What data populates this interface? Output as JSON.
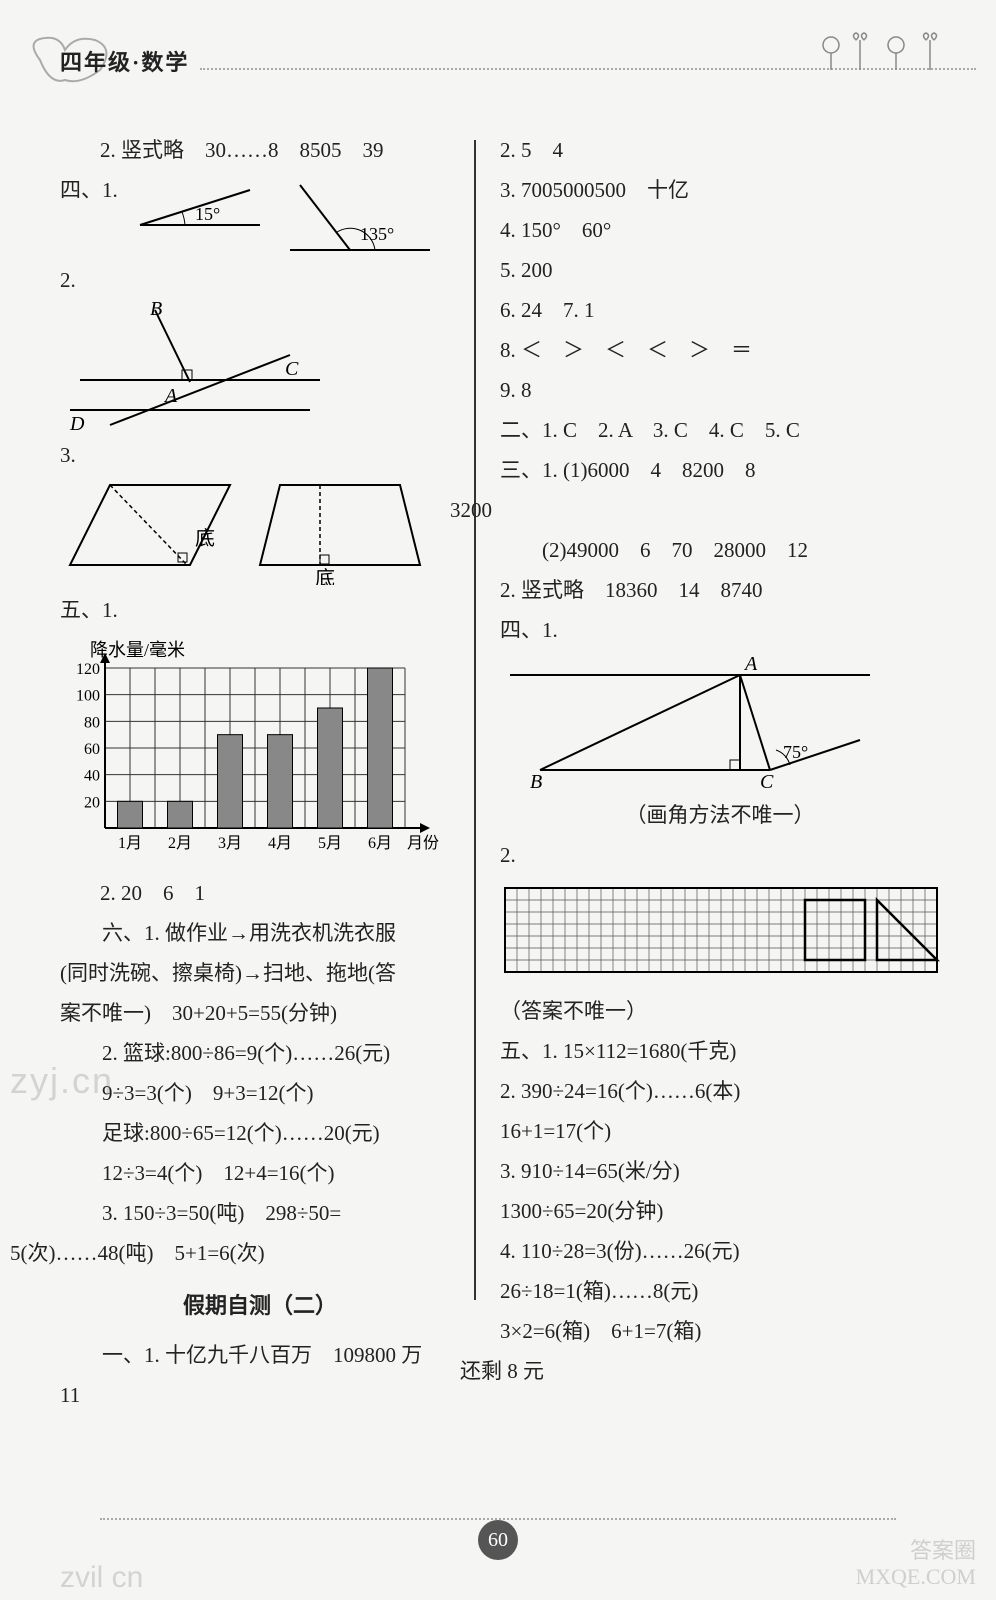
{
  "header": {
    "grade_title": "四年级·数学"
  },
  "left": {
    "l2": "2. 竖式略　30……8　8505　39",
    "l4_1": "四、1.",
    "angle1": "15°",
    "angle2": "135°",
    "l2b": "2.",
    "labB": "B",
    "labA": "A",
    "labC": "C",
    "labD": "D",
    "l3b": "3.",
    "di1": "底",
    "di2": "底",
    "l5_1": "五、1.",
    "chart": {
      "ylabel": "降水量/毫米",
      "xlabel": "月份",
      "ylim": [
        0,
        120
      ],
      "ytick_step": 20,
      "yticks": [
        "120",
        "100",
        "80",
        "60",
        "40",
        "20"
      ],
      "categories": [
        "1月",
        "2月",
        "3月",
        "4月",
        "5月",
        "6月"
      ],
      "values": [
        20,
        20,
        70,
        70,
        90,
        120
      ],
      "bar_color": "#888888",
      "grid_color": "#333333",
      "bar_width_cells": 1
    },
    "l5_2": "2. 20　6　1",
    "l6_1a": "　　六、1. 做作业→用洗衣机洗衣服",
    "l6_1b": "(同时洗碗、擦桌椅)→扫地、拖地(答",
    "l6_1c": "案不唯一)　30+20+5=55(分钟)",
    "l6_2a": "　　2. 篮球:800÷86=9(个)……26(元)",
    "l6_2b": "　　9÷3=3(个)　9+3=12(个)",
    "l6_2c": "　　足球:800÷65=12(个)……20(元)",
    "l6_2d": "　　12÷3=4(个)　12+4=16(个)",
    "l6_3a": "　　3. 150÷3=50(吨)　298÷50=",
    "l6_3b": "5(次)……48(吨)　5+1=6(次)",
    "test_title": "假期自测（二）",
    "l1_1": "　　一、1. 十亿九千八百万　109800 万",
    "l1_1b": "11"
  },
  "right": {
    "r2": "2. 5　4",
    "r3": "3. 7005000500　十亿",
    "r4": "4. 150°　60°",
    "r5": "5. 200",
    "r6": "6. 24　7. 1",
    "r8": "8. ＜　＞　＜　＜　＞　＝",
    "r9": "9. 8",
    "r2_1": "二、1. C　2. A　3. C　4. C　5. C",
    "r3_1a": "三、1. (1)6000　4　8200　8",
    "r3_1b": "3200",
    "r3_1c": "　　(2)49000　6　70　28000　12",
    "r3_2": "2. 竖式略　18360　14　8740",
    "r4_1": "四、1.",
    "tri_A": "A",
    "tri_B": "B",
    "tri_C": "C",
    "tri_angle": "75°",
    "r4_note": "（画角方法不唯一）",
    "r4_2": "2.",
    "r4_2note": "（答案不唯一）",
    "r5_1": "五、1. 15×112=1680(千克)",
    "r5_2a": "2. 390÷24=16(个)……6(本)",
    "r5_2b": "16+1=17(个)",
    "r5_3a": "3. 910÷14=65(米/分)",
    "r5_3b": "1300÷65=20(分钟)",
    "r5_4a": "4. 110÷28=3(份)……26(元)",
    "r5_4b": "26÷18=1(箱)……8(元)",
    "r5_4c": "3×2=6(箱)　6+1=7(箱)",
    "r5_4d": "还剩 8 元"
  },
  "page_number": "60",
  "watermarks": {
    "w1": "zyj.cn",
    "w2a": "答案圈",
    "w2b": "MXQE.COM",
    "w3": "zvil cn"
  }
}
